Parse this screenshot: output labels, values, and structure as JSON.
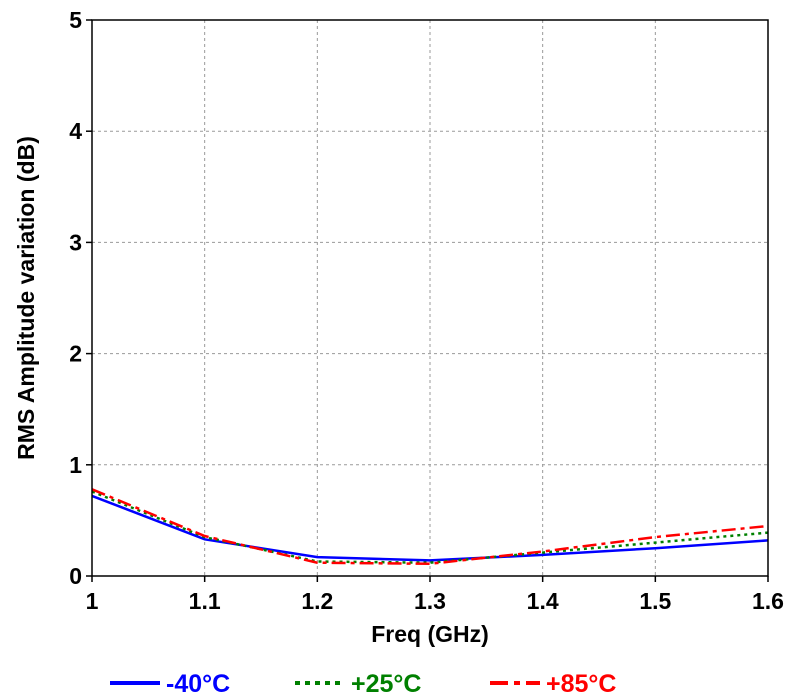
{
  "chart_data": {
    "type": "line",
    "title": "",
    "xlabel": "Freq (GHz)",
    "ylabel": "RMS Amplitude variation (dB)",
    "xlim": [
      1,
      1.6
    ],
    "ylim": [
      0,
      5
    ],
    "xticks": [
      1,
      1.1,
      1.2,
      1.3,
      1.4,
      1.5,
      1.6
    ],
    "xtick_labels": [
      "1",
      "1.1",
      "1.2",
      "1.3",
      "1.4",
      "1.5",
      "1.6"
    ],
    "yticks": [
      0,
      1,
      2,
      3,
      4,
      5
    ],
    "ytick_labels": [
      "0",
      "1",
      "2",
      "3",
      "4",
      "5"
    ],
    "grid": true,
    "legend_position": "bottom",
    "x": [
      1.0,
      1.1,
      1.2,
      1.3,
      1.4,
      1.5,
      1.6
    ],
    "series": [
      {
        "name": "-40°C",
        "color": "#0000ff",
        "style": "solid",
        "values": [
          0.72,
          0.33,
          0.17,
          0.14,
          0.19,
          0.25,
          0.32
        ]
      },
      {
        "name": "+25°C",
        "color": "#008000",
        "style": "dotted",
        "values": [
          0.76,
          0.35,
          0.13,
          0.12,
          0.21,
          0.3,
          0.39
        ]
      },
      {
        "name": "+85°C",
        "color": "#ff0000",
        "style": "dashdot",
        "values": [
          0.78,
          0.36,
          0.12,
          0.11,
          0.22,
          0.35,
          0.45
        ]
      }
    ]
  }
}
